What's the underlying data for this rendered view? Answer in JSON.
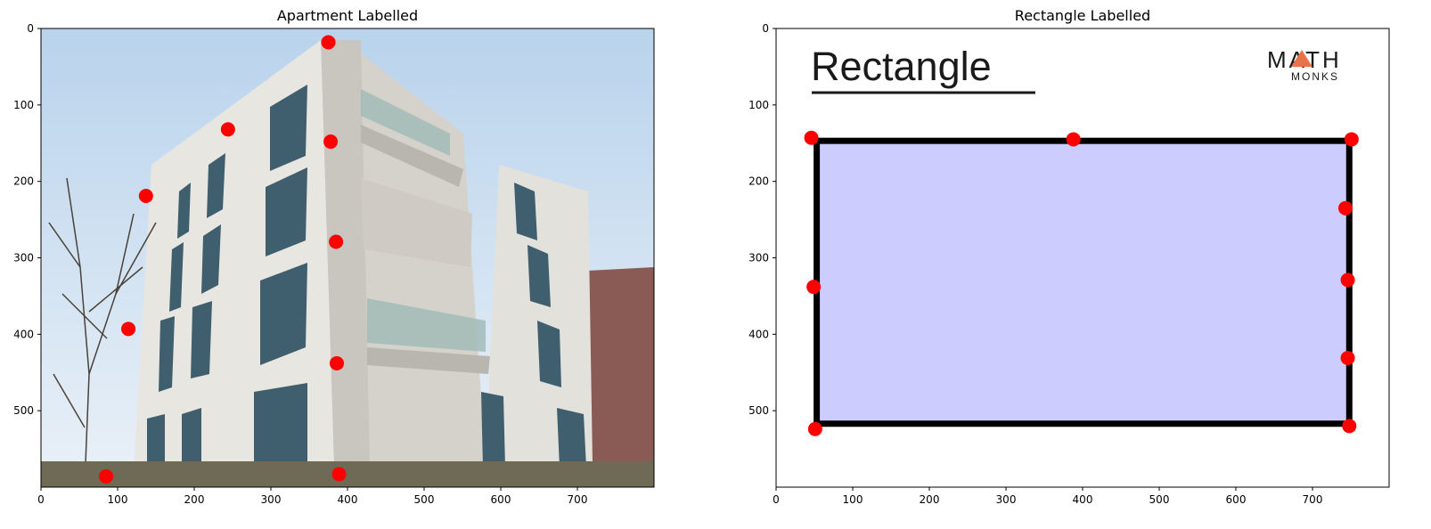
{
  "colors": {
    "point": "#ff0000",
    "rect_fill": "#ccccff",
    "rect_stroke": "#000000",
    "logo_accent": "#e8734a",
    "sky": "#cfe2f3",
    "wall": "#d9d6d0"
  },
  "chart_data": [
    {
      "type": "scatter",
      "title": "Apartment Labelled",
      "background": "photo of a modern apartment building",
      "xlim": [
        0,
        800
      ],
      "ylim": [
        600,
        0
      ],
      "x_ticks": [
        0,
        100,
        200,
        300,
        400,
        500,
        600,
        700
      ],
      "y_ticks": [
        0,
        100,
        200,
        300,
        400,
        500
      ],
      "points": [
        {
          "x": 375,
          "y": 18
        },
        {
          "x": 244,
          "y": 132
        },
        {
          "x": 378,
          "y": 148
        },
        {
          "x": 137,
          "y": 219
        },
        {
          "x": 385,
          "y": 279
        },
        {
          "x": 114,
          "y": 393
        },
        {
          "x": 386,
          "y": 438
        },
        {
          "x": 85,
          "y": 586
        },
        {
          "x": 389,
          "y": 583
        }
      ]
    },
    {
      "type": "scatter",
      "title": "Rectangle Labelled",
      "background": "rectangle diagram",
      "image_text": {
        "heading": "Rectangle",
        "logo_line1": "MATH",
        "logo_line2": "MONKS"
      },
      "xlim": [
        0,
        800
      ],
      "ylim": [
        600,
        0
      ],
      "x_ticks": [
        0,
        100,
        200,
        300,
        400,
        500,
        600,
        700
      ],
      "y_ticks": [
        0,
        100,
        200,
        300,
        400,
        500
      ],
      "rectangle": {
        "x0": 53,
        "y0": 147,
        "x1": 748,
        "y1": 517
      },
      "points": [
        {
          "x": 46,
          "y": 143
        },
        {
          "x": 388,
          "y": 145
        },
        {
          "x": 751,
          "y": 145
        },
        {
          "x": 743,
          "y": 235
        },
        {
          "x": 49,
          "y": 338
        },
        {
          "x": 746,
          "y": 329
        },
        {
          "x": 746,
          "y": 431
        },
        {
          "x": 51,
          "y": 524
        },
        {
          "x": 748,
          "y": 520
        }
      ]
    }
  ]
}
